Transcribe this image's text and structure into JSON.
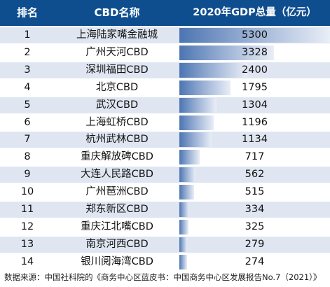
{
  "chart_data": {
    "type": "table",
    "columns": [
      "排名",
      "CBD名称",
      "2020年GDP总量（亿元）"
    ],
    "rows": [
      {
        "rank": "1",
        "name": "上海陆家嘴金融城",
        "gdp": 5300
      },
      {
        "rank": "2",
        "name": "广州天河CBD",
        "gdp": 3328
      },
      {
        "rank": "3",
        "name": "深圳福田CBD",
        "gdp": 2400
      },
      {
        "rank": "4",
        "name": "北京CBD",
        "gdp": 1795
      },
      {
        "rank": "5",
        "name": "武汉CBD",
        "gdp": 1304
      },
      {
        "rank": "6",
        "name": "上海虹桥CBD",
        "gdp": 1196
      },
      {
        "rank": "7",
        "name": "杭州武林CBD",
        "gdp": 1134
      },
      {
        "rank": "8",
        "name": "重庆解放碑CBD",
        "gdp": 717
      },
      {
        "rank": "9",
        "name": "大连人民路CBD",
        "gdp": 562
      },
      {
        "rank": "10",
        "name": "广州琶洲CBD",
        "gdp": 515
      },
      {
        "rank": "11",
        "name": "郑东新区CBD",
        "gdp": 334
      },
      {
        "rank": "12",
        "name": "重庆江北嘴CBD",
        "gdp": 325
      },
      {
        "rank": "13",
        "name": "南京河西CBD",
        "gdp": 279
      },
      {
        "rank": "14",
        "name": "银川阅海湾CBD",
        "gdp": 274
      }
    ],
    "colors": {
      "header": "#0e4e8f",
      "bar": "#4c75b2",
      "row_alt": "#dfe6f1"
    }
  },
  "source_note": "数据来源：中国社科院的《商务中心区蓝皮书：中国商务中心区发展报告No.7（2021）》"
}
